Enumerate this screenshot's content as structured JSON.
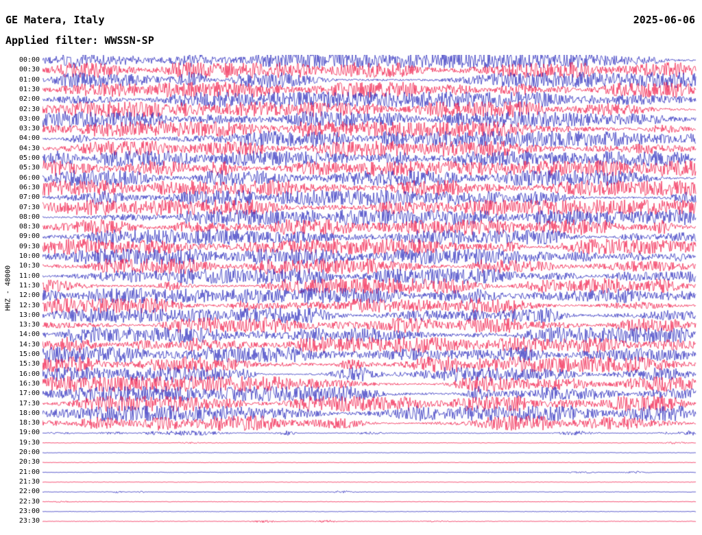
{
  "header": {
    "station": "GE Matera, Italy",
    "date": "2025-06-06",
    "filter_label": "Applied filter: WWSSN-SP"
  },
  "axis": {
    "channel_label": "HHZ - 48000"
  },
  "chart_data": {
    "type": "seismogram-helicorder",
    "station": "GE Matera, Italy",
    "date": "2025-06-06",
    "filter": "WWSSN-SP",
    "channel": "HHZ",
    "scale": 48000,
    "minutes_per_row": 30,
    "rows_count": 48,
    "time_range": [
      "00:00",
      "23:30"
    ],
    "colors": {
      "even_rows": "#2626bb",
      "odd_rows": "#f01544",
      "background": "#ffffff",
      "text": "#000000"
    },
    "rows": [
      {
        "time": "00:00",
        "color": "blue",
        "activity": "high"
      },
      {
        "time": "00:30",
        "color": "red",
        "activity": "high"
      },
      {
        "time": "01:00",
        "color": "blue",
        "activity": "high"
      },
      {
        "time": "01:30",
        "color": "red",
        "activity": "high"
      },
      {
        "time": "02:00",
        "color": "blue",
        "activity": "high"
      },
      {
        "time": "02:30",
        "color": "red",
        "activity": "high"
      },
      {
        "time": "03:00",
        "color": "blue",
        "activity": "high"
      },
      {
        "time": "03:30",
        "color": "red",
        "activity": "high"
      },
      {
        "time": "04:00",
        "color": "blue",
        "activity": "high"
      },
      {
        "time": "04:30",
        "color": "red",
        "activity": "high"
      },
      {
        "time": "05:00",
        "color": "blue",
        "activity": "high"
      },
      {
        "time": "05:30",
        "color": "red",
        "activity": "high"
      },
      {
        "time": "06:00",
        "color": "blue",
        "activity": "high"
      },
      {
        "time": "06:30",
        "color": "red",
        "activity": "high"
      },
      {
        "time": "07:00",
        "color": "blue",
        "activity": "high"
      },
      {
        "time": "07:30",
        "color": "red",
        "activity": "high"
      },
      {
        "time": "08:00",
        "color": "blue",
        "activity": "high"
      },
      {
        "time": "08:30",
        "color": "red",
        "activity": "high"
      },
      {
        "time": "09:00",
        "color": "blue",
        "activity": "high"
      },
      {
        "time": "09:30",
        "color": "red",
        "activity": "high"
      },
      {
        "time": "10:00",
        "color": "blue",
        "activity": "high"
      },
      {
        "time": "10:30",
        "color": "red",
        "activity": "high"
      },
      {
        "time": "11:00",
        "color": "blue",
        "activity": "high"
      },
      {
        "time": "11:30",
        "color": "red",
        "activity": "high"
      },
      {
        "time": "12:00",
        "color": "blue",
        "activity": "high"
      },
      {
        "time": "12:30",
        "color": "red",
        "activity": "high"
      },
      {
        "time": "13:00",
        "color": "blue",
        "activity": "high"
      },
      {
        "time": "13:30",
        "color": "red",
        "activity": "high"
      },
      {
        "time": "14:00",
        "color": "blue",
        "activity": "high"
      },
      {
        "time": "14:30",
        "color": "red",
        "activity": "high"
      },
      {
        "time": "15:00",
        "color": "blue",
        "activity": "high"
      },
      {
        "time": "15:30",
        "color": "red",
        "activity": "high"
      },
      {
        "time": "16:00",
        "color": "blue",
        "activity": "high"
      },
      {
        "time": "16:30",
        "color": "red",
        "activity": "high"
      },
      {
        "time": "17:00",
        "color": "blue",
        "activity": "high"
      },
      {
        "time": "17:30",
        "color": "red",
        "activity": "high"
      },
      {
        "time": "18:00",
        "color": "blue",
        "activity": "high"
      },
      {
        "time": "18:30",
        "color": "red",
        "activity": "high"
      },
      {
        "time": "19:00",
        "color": "blue",
        "activity": "medium"
      },
      {
        "time": "19:30",
        "color": "red",
        "activity": "low"
      },
      {
        "time": "20:00",
        "color": "blue",
        "activity": "low"
      },
      {
        "time": "20:30",
        "color": "red",
        "activity": "low"
      },
      {
        "time": "21:00",
        "color": "blue",
        "activity": "low"
      },
      {
        "time": "21:30",
        "color": "red",
        "activity": "low"
      },
      {
        "time": "22:00",
        "color": "blue",
        "activity": "low"
      },
      {
        "time": "22:30",
        "color": "red",
        "activity": "low"
      },
      {
        "time": "23:00",
        "color": "blue",
        "activity": "low"
      },
      {
        "time": "23:30",
        "color": "red",
        "activity": "low"
      }
    ]
  }
}
